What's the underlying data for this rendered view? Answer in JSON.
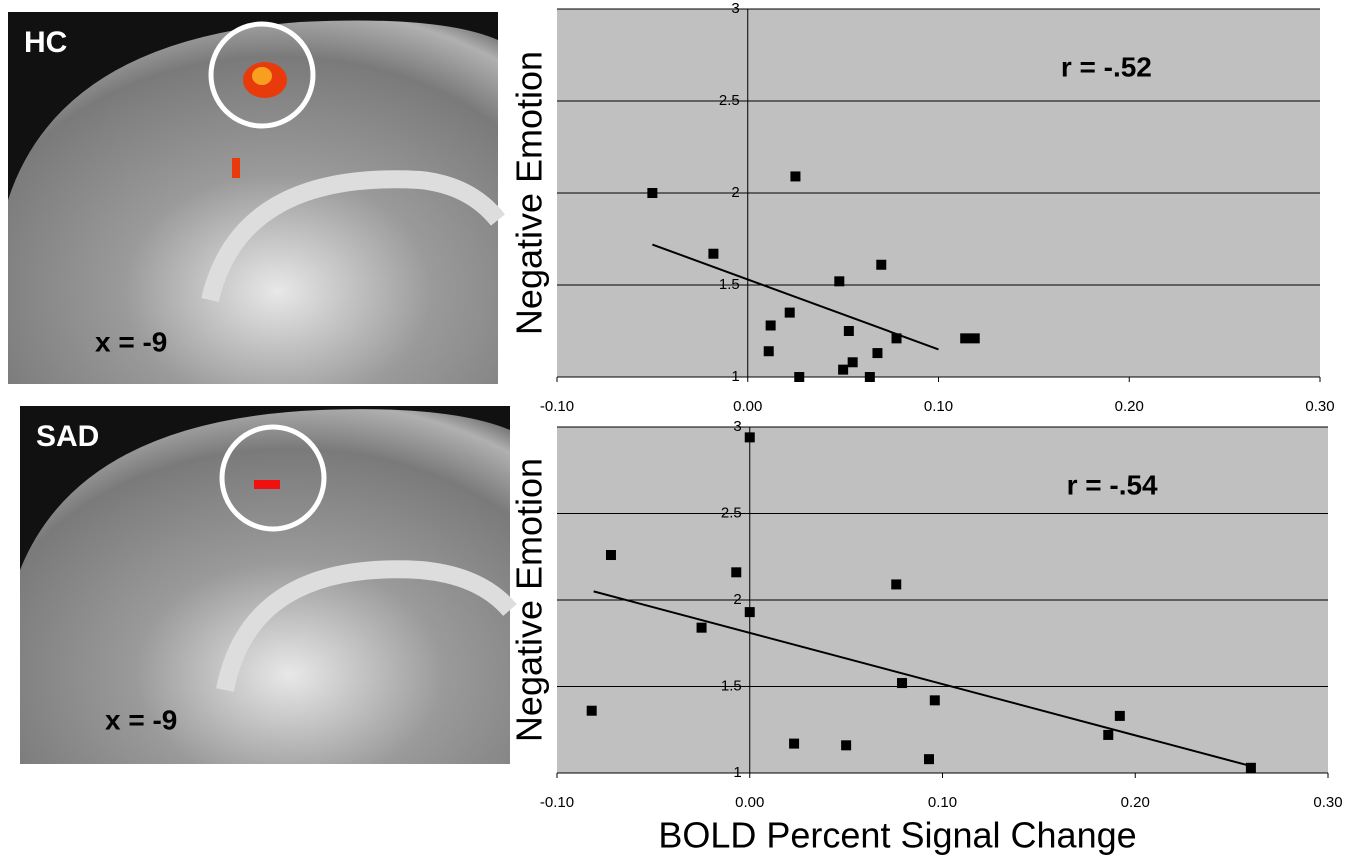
{
  "panels": [
    {
      "label": "HC",
      "coord": "x = -9"
    },
    {
      "label": "SAD",
      "coord": "x = -9"
    }
  ],
  "chart_data": [
    {
      "type": "scatter",
      "annotation": "r = -.52",
      "ylabel": "Negative Emotion",
      "x": [
        -0.05,
        0.025,
        -0.018,
        0.048,
        0.07,
        0.022,
        0.012,
        0.053,
        0.078,
        0.114,
        0.119,
        0.011,
        0.055,
        0.068,
        0.05,
        0.027,
        0.064
      ],
      "y": [
        2.0,
        2.09,
        1.67,
        1.52,
        1.61,
        1.35,
        1.28,
        1.25,
        1.21,
        1.21,
        1.21,
        1.14,
        1.08,
        1.13,
        1.04,
        1.0,
        1.0
      ],
      "trend": {
        "x": [
          -0.05,
          0.1
        ],
        "y": [
          1.72,
          1.15
        ]
      },
      "color": "#000000",
      "background": "#c0c0c0",
      "xlim": [
        -0.1,
        0.3
      ],
      "ylim": [
        1,
        3
      ],
      "xticks": [
        {
          "value": -0.1,
          "label": "-0.10"
        },
        {
          "value": 0,
          "label": "0.00"
        },
        {
          "value": 0.1,
          "label": "0.10"
        },
        {
          "value": 0.2,
          "label": "0.20"
        },
        {
          "value": 0.3,
          "label": "0.30"
        }
      ],
      "yticks": [
        1,
        1.5,
        2,
        2.5,
        3
      ],
      "grid": true
    },
    {
      "type": "scatter",
      "annotation": "r = -.54",
      "ylabel": "Negative Emotion",
      "xlabel": "BOLD Percent Signal Change",
      "x": [
        0.0,
        -0.072,
        -0.007,
        0.076,
        0.0,
        -0.025,
        0.079,
        0.096,
        -0.082,
        0.192,
        0.186,
        0.023,
        0.05,
        0.093,
        0.26
      ],
      "y": [
        2.94,
        2.26,
        2.16,
        2.09,
        1.93,
        1.84,
        1.52,
        1.42,
        1.36,
        1.33,
        1.22,
        1.17,
        1.16,
        1.08,
        1.03
      ],
      "trend": {
        "x": [
          -0.081,
          0.26
        ],
        "y": [
          2.05,
          1.04
        ]
      },
      "color": "#000000",
      "background": "#c0c0c0",
      "xlim": [
        -0.1,
        0.3
      ],
      "ylim": [
        1,
        3
      ],
      "xticks": [
        {
          "value": -0.1,
          "label": "-0.10"
        },
        {
          "value": 0,
          "label": "0.00"
        },
        {
          "value": 0.1,
          "label": "0.10"
        },
        {
          "value": 0.2,
          "label": "0.20"
        },
        {
          "value": 0.3,
          "label": "0.30"
        }
      ],
      "yticks": [
        1,
        1.5,
        2,
        2.5,
        3
      ],
      "grid": true
    }
  ]
}
